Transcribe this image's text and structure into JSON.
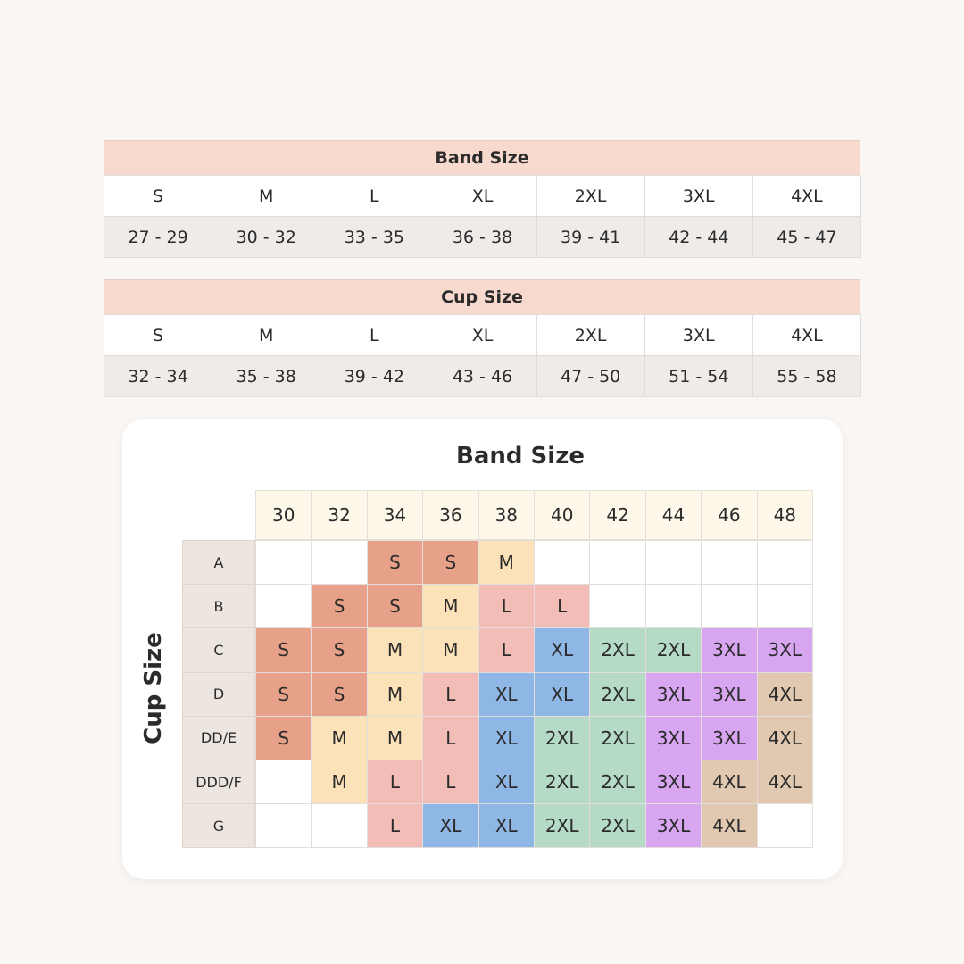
{
  "band_table": {
    "title": "Band Size",
    "sizes": [
      "S",
      "M",
      "L",
      "XL",
      "2XL",
      "3XL",
      "4XL"
    ],
    "ranges": [
      "27 - 29",
      "30 - 32",
      "33 - 35",
      "36 - 38",
      "39 - 41",
      "42 - 44",
      "45 - 47"
    ]
  },
  "cup_table": {
    "title": "Cup Size",
    "sizes": [
      "S",
      "M",
      "L",
      "XL",
      "2XL",
      "3XL",
      "4XL"
    ],
    "ranges": [
      "32 - 34",
      "35 - 38",
      "39 - 42",
      "43 - 46",
      "47 - 50",
      "51 - 54",
      "55 - 58"
    ]
  },
  "grid": {
    "title": "Band Size",
    "row_title": "Cup Size",
    "columns": [
      "30",
      "32",
      "34",
      "36",
      "38",
      "40",
      "42",
      "44",
      "46",
      "48"
    ],
    "size_colors": {
      "S": "#e8a189",
      "M": "#fbe2b9",
      "L": "#f1bdb6",
      "XL": "#8fb7e6",
      "2XL": "#b5dac6",
      "3XL": "#d8a6f1",
      "4XL": "#e1c8b1"
    },
    "rows": [
      {
        "label": "A",
        "cells": [
          null,
          null,
          "S",
          "S",
          "M",
          null,
          null,
          null,
          null,
          null
        ]
      },
      {
        "label": "B",
        "cells": [
          null,
          "S",
          "S",
          "M",
          "L",
          "L",
          null,
          null,
          null,
          null
        ]
      },
      {
        "label": "C",
        "cells": [
          "S",
          "S",
          "M",
          "M",
          "L",
          "XL",
          "2XL",
          "2XL",
          "3XL",
          "3XL"
        ]
      },
      {
        "label": "D",
        "cells": [
          "S",
          "S",
          "M",
          "L",
          "XL",
          "XL",
          "2XL",
          "3XL",
          "3XL",
          "4XL"
        ]
      },
      {
        "label": "DD/E",
        "cells": [
          "S",
          "M",
          "M",
          "L",
          "XL",
          "2XL",
          "2XL",
          "3XL",
          "3XL",
          "4XL"
        ]
      },
      {
        "label": "DDD/F",
        "cells": [
          null,
          "M",
          "L",
          "L",
          "XL",
          "2XL",
          "2XL",
          "3XL",
          "4XL",
          "4XL"
        ]
      },
      {
        "label": "G",
        "cells": [
          null,
          null,
          "L",
          "XL",
          "XL",
          "2XL",
          "2XL",
          "3XL",
          "4XL",
          null
        ]
      }
    ]
  }
}
